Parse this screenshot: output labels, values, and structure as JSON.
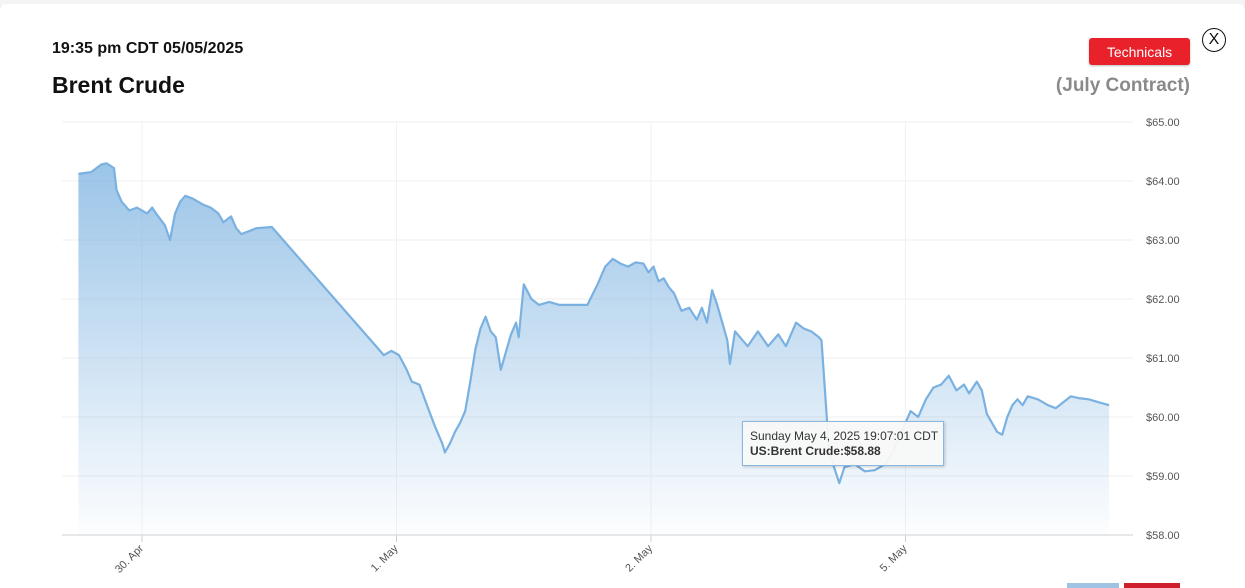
{
  "header": {
    "timestamp": "19:35 pm CDT 05/05/2025",
    "title": "Brent Crude",
    "contract": "(July Contract)",
    "technicals_label": "Technicals",
    "close_label": "X"
  },
  "tooltip": {
    "line1": "Sunday May 4, 2025 19:07:01 CDT",
    "line2": "US:Brent Crude:$58.88"
  },
  "colors": {
    "line": "#7ab1e0",
    "fill": "#7ab1e0",
    "button": "#e8212b"
  },
  "chart_data": {
    "type": "area",
    "title": "",
    "xlabel": "",
    "ylabel": "",
    "ylim": [
      58,
      65
    ],
    "y_ticks": [
      "$58.00",
      "$59.00",
      "$60.00",
      "$61.00",
      "$62.00",
      "$63.00",
      "$64.00",
      "$65.00"
    ],
    "x_ticks": [
      "30. Apr",
      "1. May",
      "2. May",
      "5. May"
    ],
    "x_unit": "days (30 Apr = 0)",
    "series": [
      {
        "points": [
          [
            -0.25,
            64.12
          ],
          [
            -0.2,
            64.15
          ],
          [
            -0.16,
            64.28
          ],
          [
            -0.14,
            64.3
          ],
          [
            -0.11,
            64.22
          ],
          [
            -0.1,
            63.85
          ],
          [
            -0.08,
            63.65
          ],
          [
            -0.05,
            63.5
          ],
          [
            -0.02,
            63.55
          ],
          [
            0.02,
            63.45
          ],
          [
            0.04,
            63.55
          ],
          [
            0.06,
            63.42
          ],
          [
            0.09,
            63.25
          ],
          [
            0.11,
            63.0
          ],
          [
            0.13,
            63.45
          ],
          [
            0.15,
            63.65
          ],
          [
            0.17,
            63.75
          ],
          [
            0.2,
            63.7
          ],
          [
            0.22,
            63.65
          ],
          [
            0.24,
            63.6
          ],
          [
            0.27,
            63.55
          ],
          [
            0.3,
            63.45
          ],
          [
            0.32,
            63.3
          ],
          [
            0.35,
            63.4
          ],
          [
            0.37,
            63.2
          ],
          [
            0.39,
            63.1
          ],
          [
            0.42,
            63.15
          ],
          [
            0.45,
            63.2
          ],
          [
            0.51,
            63.22
          ],
          [
            0.95,
            61.05
          ],
          [
            0.98,
            61.12
          ],
          [
            1.01,
            61.05
          ],
          [
            1.04,
            60.8
          ],
          [
            1.06,
            60.6
          ],
          [
            1.09,
            60.55
          ],
          [
            1.12,
            60.2
          ],
          [
            1.15,
            59.85
          ],
          [
            1.18,
            59.55
          ],
          [
            1.19,
            59.4
          ],
          [
            1.21,
            59.55
          ],
          [
            1.23,
            59.75
          ],
          [
            1.25,
            59.9
          ],
          [
            1.27,
            60.1
          ],
          [
            1.29,
            60.6
          ],
          [
            1.31,
            61.15
          ],
          [
            1.33,
            61.5
          ],
          [
            1.35,
            61.7
          ],
          [
            1.37,
            61.45
          ],
          [
            1.39,
            61.35
          ],
          [
            1.41,
            60.8
          ],
          [
            1.43,
            61.1
          ],
          [
            1.45,
            61.4
          ],
          [
            1.47,
            61.6
          ],
          [
            1.48,
            61.35
          ],
          [
            1.5,
            62.25
          ],
          [
            1.53,
            62.0
          ],
          [
            1.56,
            61.9
          ],
          [
            1.6,
            61.95
          ],
          [
            1.64,
            61.9
          ],
          [
            1.7,
            61.9
          ],
          [
            1.75,
            61.9
          ],
          [
            1.79,
            62.25
          ],
          [
            1.82,
            62.55
          ],
          [
            1.85,
            62.68
          ],
          [
            1.88,
            62.6
          ],
          [
            1.91,
            62.55
          ],
          [
            1.94,
            62.62
          ],
          [
            1.97,
            62.6
          ],
          [
            1.99,
            62.45
          ],
          [
            2.01,
            62.55
          ],
          [
            2.03,
            62.3
          ],
          [
            2.05,
            62.35
          ],
          [
            2.07,
            62.2
          ],
          [
            2.09,
            62.1
          ],
          [
            2.12,
            61.8
          ],
          [
            2.15,
            61.85
          ],
          [
            2.18,
            61.65
          ],
          [
            2.2,
            61.85
          ],
          [
            2.22,
            61.6
          ],
          [
            2.24,
            62.15
          ],
          [
            2.26,
            61.9
          ],
          [
            2.28,
            61.6
          ],
          [
            2.3,
            61.3
          ],
          [
            2.31,
            60.9
          ],
          [
            2.33,
            61.45
          ],
          [
            2.36,
            61.3
          ],
          [
            2.38,
            61.2
          ],
          [
            2.42,
            61.45
          ],
          [
            2.46,
            61.2
          ],
          [
            2.5,
            61.4
          ],
          [
            2.53,
            61.2
          ],
          [
            2.57,
            61.6
          ],
          [
            2.6,
            61.5
          ],
          [
            2.63,
            61.45
          ],
          [
            2.66,
            61.35
          ],
          [
            2.67,
            61.3
          ],
          [
            2.7,
            59.4
          ],
          [
            2.74,
            58.88
          ],
          [
            2.76,
            59.15
          ],
          [
            2.8,
            59.2
          ],
          [
            2.84,
            59.08
          ],
          [
            2.88,
            59.1
          ],
          [
            2.92,
            59.2
          ],
          [
            2.95,
            59.4
          ],
          [
            2.99,
            59.8
          ],
          [
            3.02,
            60.1
          ],
          [
            3.05,
            60.0
          ],
          [
            3.08,
            60.3
          ],
          [
            3.11,
            60.5
          ],
          [
            3.14,
            60.55
          ],
          [
            3.17,
            60.7
          ],
          [
            3.2,
            60.45
          ],
          [
            3.23,
            60.55
          ],
          [
            3.25,
            60.4
          ],
          [
            3.28,
            60.6
          ],
          [
            3.3,
            60.45
          ],
          [
            3.32,
            60.05
          ],
          [
            3.34,
            59.9
          ],
          [
            3.36,
            59.75
          ],
          [
            3.38,
            59.7
          ],
          [
            3.4,
            60.0
          ],
          [
            3.42,
            60.2
          ],
          [
            3.44,
            60.3
          ],
          [
            3.46,
            60.2
          ],
          [
            3.48,
            60.35
          ],
          [
            3.52,
            60.3
          ],
          [
            3.56,
            60.2
          ],
          [
            3.59,
            60.15
          ],
          [
            3.62,
            60.25
          ],
          [
            3.65,
            60.35
          ],
          [
            3.68,
            60.32
          ],
          [
            3.72,
            60.3
          ],
          [
            3.76,
            60.25
          ],
          [
            3.8,
            60.2
          ]
        ]
      }
    ]
  }
}
